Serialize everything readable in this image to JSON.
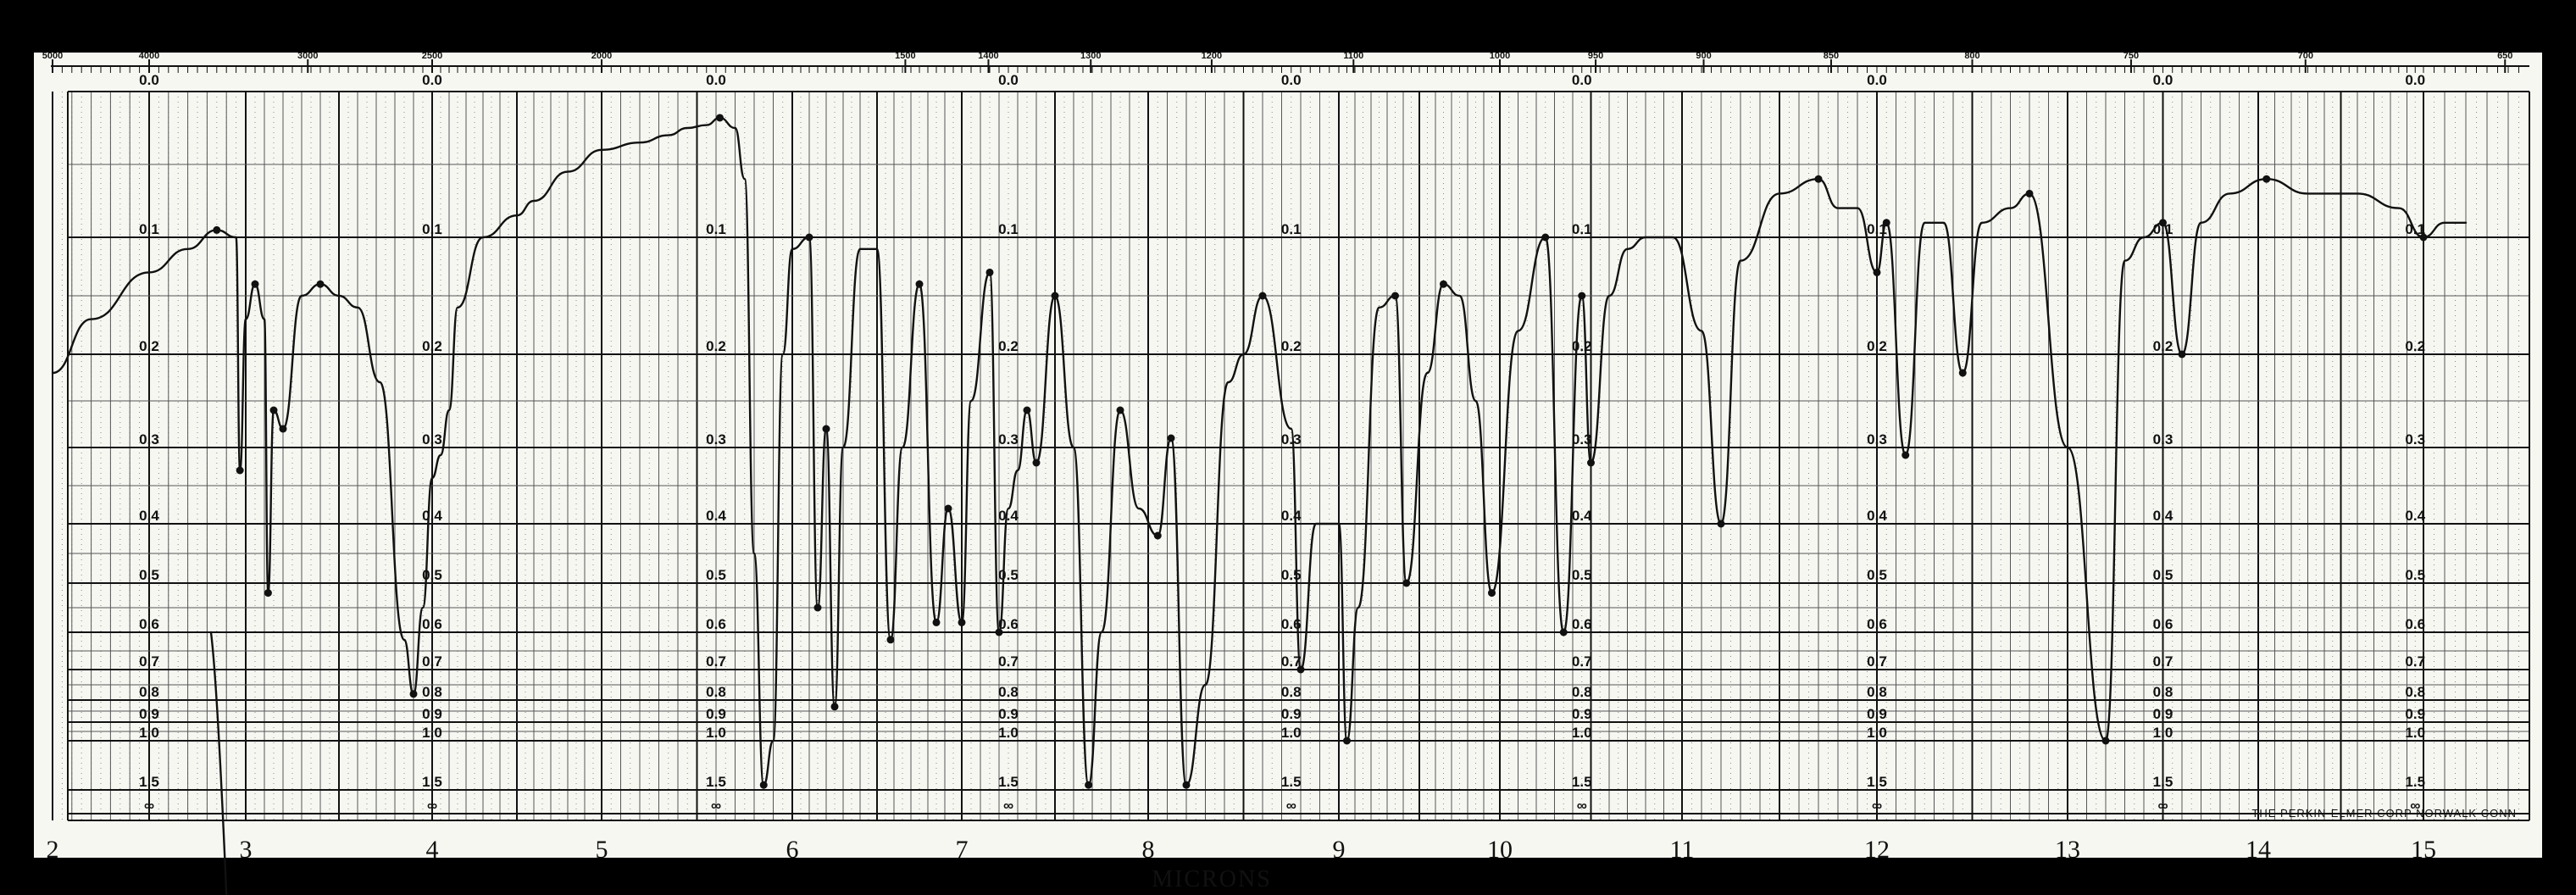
{
  "chart_data": {
    "type": "line",
    "title": "",
    "xlabel": "MICRONS",
    "ylabel": "",
    "maker_text": "THE PERKIN-ELMER CORP  NORWALK  CONN",
    "x_range": [
      2,
      15.5
    ],
    "micron_ticks": [
      "2",
      "3",
      "4",
      "5",
      "6",
      "7",
      "8",
      "9",
      "10",
      "11",
      "12",
      "13",
      "14",
      "15"
    ],
    "wavenumber_ticks": [
      {
        "label": "5000",
        "micron": 2.0
      },
      {
        "label": "4000",
        "micron": 2.5
      },
      {
        "label": "3000",
        "micron": 3.333
      },
      {
        "label": "2500",
        "micron": 4.0
      },
      {
        "label": "2000",
        "micron": 5.0
      },
      {
        "label": "1500",
        "micron": 6.667
      },
      {
        "label": "1400",
        "micron": 7.143
      },
      {
        "label": "1300",
        "micron": 7.692
      },
      {
        "label": "1200",
        "micron": 8.333
      },
      {
        "label": "1100",
        "micron": 9.091
      },
      {
        "label": "1000",
        "micron": 10.0
      },
      {
        "label": "950",
        "micron": 10.526
      },
      {
        "label": "900",
        "micron": 11.111
      },
      {
        "label": "850",
        "micron": 11.765
      },
      {
        "label": "800",
        "micron": 12.5
      },
      {
        "label": "750",
        "micron": 13.333
      },
      {
        "label": "700",
        "micron": 14.286
      },
      {
        "label": "650",
        "micron": 15.385
      }
    ],
    "absorbance_levels": [
      {
        "label": "0.0",
        "value": 0.0
      },
      {
        "label": "0.1",
        "value": 0.1
      },
      {
        "label": "0.2",
        "value": 0.2
      },
      {
        "label": "0.3",
        "value": 0.3
      },
      {
        "label": "0.4",
        "value": 0.4
      },
      {
        "label": "0.5",
        "value": 0.5
      },
      {
        "label": "0.6",
        "value": 0.6
      },
      {
        "label": "0.7",
        "value": 0.7
      },
      {
        "label": "0.8",
        "value": 0.8
      },
      {
        "label": "0.9",
        "value": 0.9
      },
      {
        "label": "1.0",
        "value": 1.0
      },
      {
        "label": "1.5",
        "value": 1.5
      },
      {
        "label": "∞",
        "value": 2.0
      }
    ],
    "absorbance_label_columns_micron": [
      2.5,
      4.0,
      5.6,
      7.25,
      8.75,
      10.45,
      12.0,
      13.5,
      14.95
    ],
    "series": [
      {
        "points": [
          [
            2.0,
            0.22
          ],
          [
            2.2,
            0.17
          ],
          [
            2.5,
            0.13
          ],
          [
            2.7,
            0.11
          ],
          [
            2.85,
            0.095
          ],
          [
            2.95,
            0.1
          ],
          [
            2.97,
            0.33
          ],
          [
            3.0,
            0.17
          ],
          [
            3.05,
            0.14
          ],
          [
            3.1,
            0.17
          ],
          [
            3.12,
            0.52
          ],
          [
            3.15,
            0.26
          ],
          [
            3.2,
            0.28
          ],
          [
            3.3,
            0.15
          ],
          [
            3.4,
            0.14
          ],
          [
            3.5,
            0.15
          ],
          [
            3.6,
            0.16
          ],
          [
            3.72,
            0.23
          ],
          [
            3.85,
            0.62
          ],
          [
            3.9,
            0.78
          ],
          [
            3.95,
            0.55
          ],
          [
            4.0,
            0.34
          ],
          [
            4.05,
            0.31
          ],
          [
            4.1,
            0.26
          ],
          [
            4.15,
            0.16
          ],
          [
            4.3,
            0.1
          ],
          [
            4.5,
            0.085
          ],
          [
            4.6,
            0.075
          ],
          [
            4.8,
            0.055
          ],
          [
            5.0,
            0.04
          ],
          [
            5.2,
            0.035
          ],
          [
            5.35,
            0.03
          ],
          [
            5.45,
            0.025
          ],
          [
            5.55,
            0.023
          ],
          [
            5.62,
            0.018
          ],
          [
            5.7,
            0.025
          ],
          [
            5.75,
            0.06
          ],
          [
            5.8,
            0.45
          ],
          [
            5.85,
            1.45
          ],
          [
            5.9,
            1.0
          ],
          [
            5.95,
            0.2
          ],
          [
            6.0,
            0.11
          ],
          [
            6.1,
            0.1
          ],
          [
            6.15,
            0.55
          ],
          [
            6.2,
            0.28
          ],
          [
            6.25,
            0.83
          ],
          [
            6.3,
            0.3
          ],
          [
            6.4,
            0.11
          ],
          [
            6.5,
            0.11
          ],
          [
            6.58,
            0.62
          ],
          [
            6.65,
            0.3
          ],
          [
            6.75,
            0.14
          ],
          [
            6.85,
            0.58
          ],
          [
            6.92,
            0.38
          ],
          [
            7.0,
            0.58
          ],
          [
            7.05,
            0.25
          ],
          [
            7.15,
            0.13
          ],
          [
            7.2,
            0.6
          ],
          [
            7.25,
            0.38
          ],
          [
            7.3,
            0.33
          ],
          [
            7.35,
            0.26
          ],
          [
            7.4,
            0.32
          ],
          [
            7.5,
            0.15
          ],
          [
            7.6,
            0.3
          ],
          [
            7.68,
            1.45
          ],
          [
            7.75,
            0.6
          ],
          [
            7.85,
            0.26
          ],
          [
            7.95,
            0.38
          ],
          [
            8.05,
            0.42
          ],
          [
            8.12,
            0.29
          ],
          [
            8.2,
            1.45
          ],
          [
            8.3,
            0.75
          ],
          [
            8.42,
            0.23
          ],
          [
            8.5,
            0.2
          ],
          [
            8.6,
            0.15
          ],
          [
            8.75,
            0.28
          ],
          [
            8.8,
            0.7
          ],
          [
            8.88,
            0.4
          ],
          [
            9.0,
            0.4
          ],
          [
            9.05,
            1.0
          ],
          [
            9.12,
            0.55
          ],
          [
            9.25,
            0.16
          ],
          [
            9.35,
            0.15
          ],
          [
            9.42,
            0.5
          ],
          [
            9.55,
            0.22
          ],
          [
            9.65,
            0.14
          ],
          [
            9.75,
            0.15
          ],
          [
            9.85,
            0.25
          ],
          [
            9.95,
            0.52
          ],
          [
            10.1,
            0.18
          ],
          [
            10.25,
            0.1
          ],
          [
            10.35,
            0.6
          ],
          [
            10.45,
            0.15
          ],
          [
            10.5,
            0.32
          ],
          [
            10.6,
            0.15
          ],
          [
            10.7,
            0.11
          ],
          [
            10.8,
            0.1
          ],
          [
            10.95,
            0.1
          ],
          [
            11.1,
            0.18
          ],
          [
            11.2,
            0.4
          ],
          [
            11.3,
            0.12
          ],
          [
            11.5,
            0.07
          ],
          [
            11.7,
            0.06
          ],
          [
            11.8,
            0.08
          ],
          [
            11.9,
            0.08
          ],
          [
            12.0,
            0.13
          ],
          [
            12.05,
            0.09
          ],
          [
            12.15,
            0.31
          ],
          [
            12.25,
            0.09
          ],
          [
            12.35,
            0.09
          ],
          [
            12.45,
            0.22
          ],
          [
            12.55,
            0.09
          ],
          [
            12.7,
            0.08
          ],
          [
            12.8,
            0.07
          ],
          [
            13.0,
            0.3
          ],
          [
            13.2,
            1.0
          ],
          [
            13.3,
            0.12
          ],
          [
            13.4,
            0.1
          ],
          [
            13.5,
            0.09
          ],
          [
            13.6,
            0.2
          ],
          [
            13.7,
            0.09
          ],
          [
            13.85,
            0.07
          ],
          [
            14.05,
            0.06
          ],
          [
            14.3,
            0.07
          ],
          [
            14.6,
            0.07
          ],
          [
            14.85,
            0.08
          ],
          [
            15.0,
            0.1
          ],
          [
            15.1,
            0.09
          ],
          [
            15.2,
            0.09
          ]
        ]
      }
    ]
  }
}
